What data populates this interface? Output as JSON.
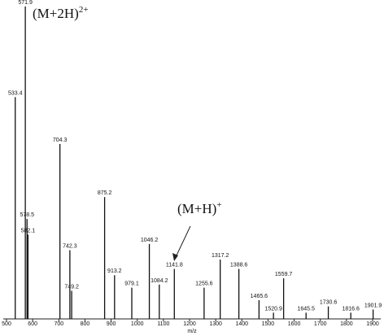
{
  "chart_data": {
    "type": "stem",
    "x_label": "m/z",
    "x": [
      533.4,
      571.9,
      578.5,
      582.1,
      704.3,
      742.3,
      749.2,
      875.2,
      913.2,
      979.1,
      1046.2,
      1084.2,
      1141.8,
      1255.6,
      1317.2,
      1388.6,
      1465.6,
      1520.9,
      1559.7,
      1645.5,
      1730.6,
      1816.6,
      1901.9
    ],
    "values": [
      71,
      100,
      32,
      27,
      56,
      22,
      9,
      39,
      14,
      10,
      24,
      11,
      16,
      10,
      19,
      16,
      6,
      2,
      13,
      2,
      4,
      2,
      3
    ],
    "color": "#111111",
    "xlim": [
      500,
      1900
    ],
    "xticks": [
      500,
      600,
      700,
      800,
      900,
      1000,
      1100,
      1200,
      1300,
      1400,
      1500,
      1600,
      1700,
      1800,
      1900
    ],
    "ylim": [
      0,
      100
    ],
    "annotations": [
      {
        "text": "(M+2H)",
        "sup": "2+"
      },
      {
        "text": "(M+H)",
        "sup": "+"
      }
    ]
  }
}
